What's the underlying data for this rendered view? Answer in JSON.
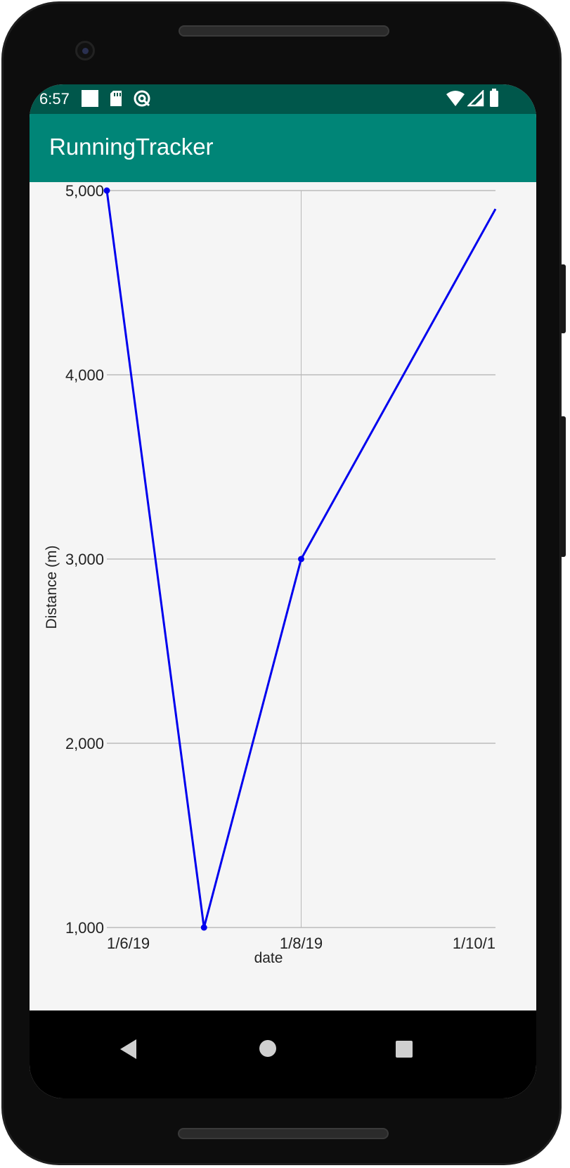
{
  "status_bar": {
    "time": "6:57",
    "left_icons": [
      "white-square-notification-icon",
      "sd-card-icon",
      "sync-circle-icon"
    ],
    "right_icons": [
      "wifi-icon",
      "cellular-signal-icon",
      "battery-icon"
    ]
  },
  "app_bar": {
    "title": "RunningTracker"
  },
  "chart_data": {
    "type": "line",
    "xlabel": "date",
    "ylabel": "Distance (m)",
    "x_tick_labels": [
      "1/6/19",
      "1/8/19",
      "1/10/1"
    ],
    "y_tick_labels": [
      "5,000",
      "4,000",
      "3,000",
      "2,000",
      "1,000"
    ],
    "ylim": [
      1000,
      5000
    ],
    "xlim": [
      "1/6/19",
      "1/10/19"
    ],
    "grid": true,
    "series": [
      {
        "color": "#0000ee",
        "points": [
          {
            "x": "1/6/19",
            "y": 5000
          },
          {
            "x": "1/7/19",
            "y": 1000
          },
          {
            "x": "1/8/19",
            "y": 3000
          },
          {
            "x": "1/10/19",
            "y": 4900
          }
        ]
      }
    ]
  },
  "nav_bar": {
    "buttons": [
      "back-icon",
      "home-icon",
      "recents-icon"
    ]
  },
  "colors": {
    "status_bar": "#00574b",
    "app_bar": "#008577",
    "line": "#0000ee",
    "background": "#f5f5f5"
  }
}
